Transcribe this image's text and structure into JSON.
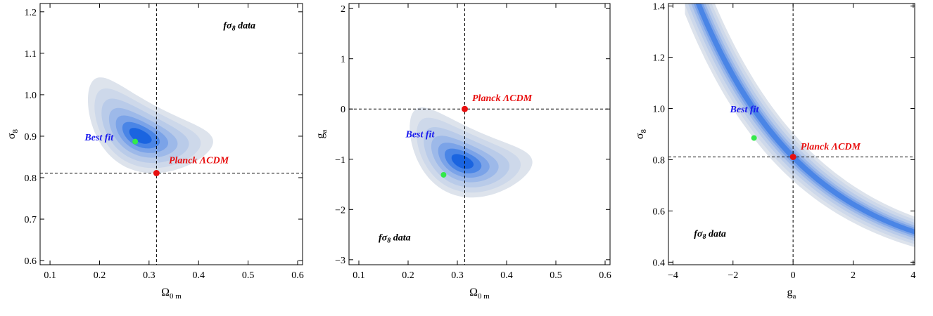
{
  "chart_data": [
    {
      "type": "contour",
      "xlabel": "Ω",
      "xlabel_sub": "0 m",
      "ylabel": "σ",
      "ylabel_sub": "8",
      "xlim": [
        0.08,
        0.61
      ],
      "ylim": [
        0.59,
        1.22
      ],
      "xticks": [
        0.1,
        0.2,
        0.3,
        0.4,
        0.5,
        0.6
      ],
      "yticks": [
        0.6,
        0.7,
        0.8,
        0.9,
        1.0,
        1.1,
        1.2
      ],
      "ytick_labels": [
        "0.6",
        "0.7",
        "0.8",
        "0.9",
        "1.0",
        "1.1",
        "1.2"
      ],
      "data_label": {
        "pre": "fσ",
        "sub": "8",
        "post": " data",
        "x": 0.45,
        "y": 1.16
      },
      "best_fit": {
        "label": "Best fit",
        "x": 0.272,
        "y": 0.887,
        "label_x": 0.17,
        "label_y": 0.89
      },
      "planck": {
        "label": "Planck ΛCDM",
        "x": 0.315,
        "y": 0.811,
        "label_x": 0.34,
        "label_y": 0.835
      },
      "ref_lines": {
        "x": 0.315,
        "y": 0.811
      },
      "contour": {
        "shape": "ellipse",
        "center": [
          0.282,
          0.9
        ],
        "major_axis_angle_deg": -28,
        "semi_axes_outer": [
          0.26,
          0.13
        ],
        "levels": [
          1.0,
          0.85,
          0.7,
          0.55,
          0.42,
          0.3,
          0.18
        ]
      }
    },
    {
      "type": "contour",
      "xlabel": "Ω",
      "xlabel_sub": "0 m",
      "ylabel": "g",
      "ylabel_sub": "a",
      "xlim": [
        0.08,
        0.61
      ],
      "ylim": [
        -3.1,
        2.1
      ],
      "xticks": [
        0.1,
        0.2,
        0.3,
        0.4,
        0.5,
        0.6
      ],
      "yticks": [
        -3,
        -2,
        -1,
        0,
        1,
        2
      ],
      "ytick_labels": [
        "−3",
        "−2",
        "−1",
        "0",
        "1",
        "2"
      ],
      "data_label": {
        "pre": "fσ",
        "sub": "8",
        "post": " data",
        "x": 0.14,
        "y": -2.62
      },
      "best_fit": {
        "label": "Best fit",
        "x": 0.272,
        "y": -1.31,
        "label_x": 0.195,
        "label_y": -0.56
      },
      "planck": {
        "label": "Planck ΛCDM",
        "x": 0.315,
        "y": 0.0,
        "label_x": 0.33,
        "label_y": 0.16
      },
      "ref_lines": {
        "x": 0.315,
        "y": 0.0
      },
      "contour": {
        "shape": "ellipse",
        "center": [
          0.31,
          -1.05
        ],
        "major_axis_angle_deg": -24,
        "semi_axes_outer": [
          0.25,
          0.13
        ],
        "levels": [
          1.0,
          0.85,
          0.7,
          0.55,
          0.42,
          0.3,
          0.18
        ]
      }
    },
    {
      "type": "contour",
      "xlabel": "g",
      "xlabel_sub": "a",
      "ylabel": "σ",
      "ylabel_sub": "8",
      "xlim": [
        -4.15,
        4.05
      ],
      "ylim": [
        0.39,
        1.41
      ],
      "xticks": [
        -4,
        -2,
        0,
        2,
        4
      ],
      "xtick_labels": [
        "−4",
        "−2",
        "0",
        "2",
        "4"
      ],
      "yticks": [
        0.4,
        0.6,
        0.8,
        1.0,
        1.2,
        1.4
      ],
      "ytick_labels": [
        "0.4",
        "0.6",
        "0.8",
        "1.0",
        "1.2",
        "1.4"
      ],
      "data_label": {
        "pre": "fσ",
        "sub": "8",
        "post": " data",
        "x": -3.3,
        "y": 0.5
      },
      "best_fit": {
        "label": "Best fit",
        "x": -1.3,
        "y": 0.885,
        "label_x": -2.1,
        "label_y": 0.985
      },
      "planck": {
        "label": "Planck ΛCDM",
        "x": 0.0,
        "y": 0.811,
        "label_x": 0.25,
        "label_y": 0.84
      },
      "ref_lines": {
        "x": 0.0,
        "y": 0.811
      },
      "contour": {
        "shape": "curved-band",
        "ridge": "sigma8 = 0.811 * exp(-0.147 * ga + 0.009 * ga^2)",
        "x_start": -3.6,
        "half_width_outer": 0.115,
        "levels": [
          1.0,
          0.8,
          0.6,
          0.42,
          0.28,
          0.16
        ]
      }
    }
  ],
  "colors": {
    "contour_fill": [
      "#dde3ec",
      "#cdd8ea",
      "#b9cbe9",
      "#9db9e9",
      "#7ba3e8",
      "#4a85e6",
      "#1a64e0"
    ],
    "best_fit_marker": "#33e84a",
    "planck_marker": "#e81010",
    "best_fit_text": "#1a1aee",
    "planck_text": "#e81010"
  }
}
